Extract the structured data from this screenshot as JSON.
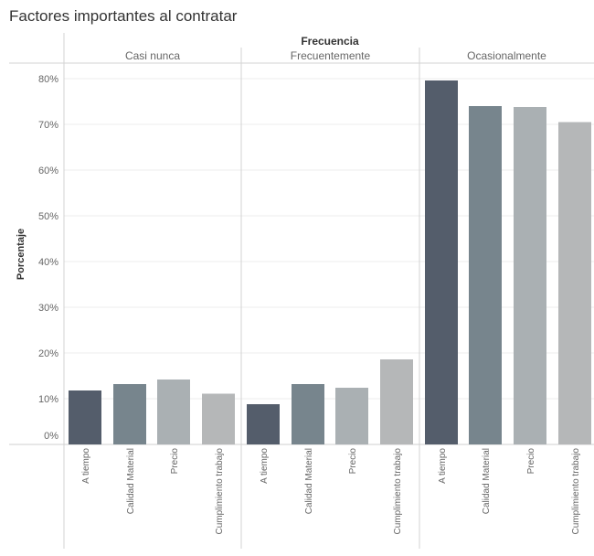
{
  "title": "Factores importantes al contratar",
  "colors": {
    "a_tiempo": "#545d6b",
    "calidad_material": "#77858d",
    "precio": "#aab0b3",
    "cumplimiento_trabajo": "#b5b7b8",
    "grid": "#ececec",
    "divider": "#d3d3d3",
    "text": "#666666",
    "title": "#333333"
  },
  "chart_data": {
    "type": "bar",
    "title": "Factores importantes al contratar",
    "column_header": "Frecuencia",
    "ylabel": "Porcentaje",
    "xlabel": "",
    "ylim": [
      0,
      80
    ],
    "yticks": [
      0,
      10,
      20,
      30,
      40,
      50,
      60,
      70,
      80
    ],
    "ytick_labels": [
      "0%",
      "10%",
      "20%",
      "30%",
      "40%",
      "50%",
      "60%",
      "70%",
      "80%"
    ],
    "grid": true,
    "legend": "none",
    "categories": [
      "A tiempo",
      "Calidad Material",
      "Precio",
      "Cumplimiento trabajo"
    ],
    "panels": [
      {
        "name": "Casi nunca",
        "values": [
          11.8,
          13.2,
          14.2,
          11.1
        ]
      },
      {
        "name": "Frecuentemente",
        "values": [
          8.8,
          13.2,
          12.4,
          18.6
        ]
      },
      {
        "name": "Ocasionalmente",
        "values": [
          79.6,
          74.0,
          73.8,
          70.5
        ]
      }
    ]
  }
}
